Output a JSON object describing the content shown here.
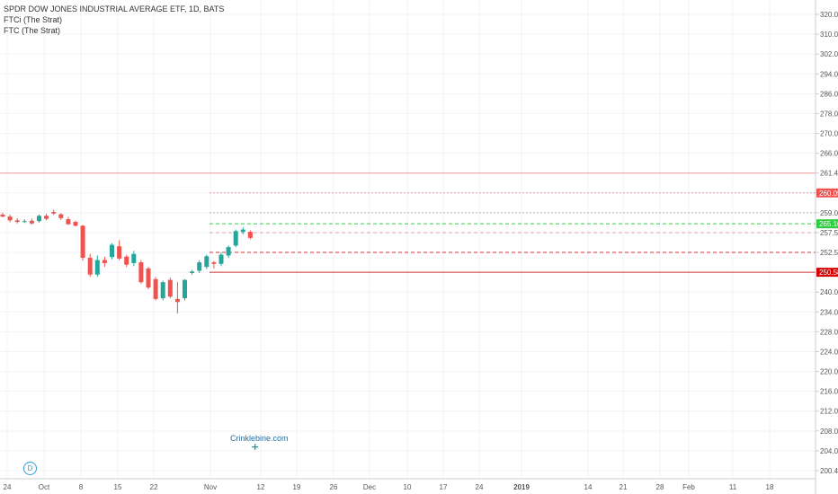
{
  "legend": {
    "title": "SPDR DOW JONES INDUSTRIAL AVERAGE ETF, 1D, BATS",
    "ind1": "FTCi (The Strat)",
    "ind2": "FTC (The Strat)"
  },
  "watermark": "Crinklebine.com",
  "marker": "D",
  "colors": {
    "up": "#26a69a",
    "down": "#ef5350",
    "grid": "#f0f3fa",
    "green_dash": "#2ecc40",
    "red_dash": "#d32f2f"
  },
  "chart_data": {
    "type": "candlestick",
    "symbol": "SPDR DOW JONES INDUSTRIAL AVERAGE ETF",
    "interval": "1D",
    "ylim": [
      198,
      323
    ],
    "y_ticks": [
      "320.00",
      "310.00",
      "302.00",
      "294.00",
      "286.00",
      "278.00",
      "270.00",
      "266.00",
      "261.45",
      "260.09",
      "259.04",
      "257.50",
      "252.50",
      "250.58",
      "240.00",
      "234.00",
      "228.00",
      "224.00",
      "220.00",
      "216.00",
      "212.00",
      "208.00",
      "204.00",
      "200.40"
    ],
    "x_ticks": [
      "24",
      "Oct",
      "8",
      "15",
      "22",
      "Nov",
      "12",
      "19",
      "26",
      "Dec",
      "10",
      "17",
      "24",
      "2019",
      "14",
      "21",
      "28",
      "Feb",
      "11",
      "18"
    ],
    "candles": [
      {
        "o": 267.5,
        "h": 268.0,
        "l": 266.8,
        "c": 267.0
      },
      {
        "o": 267.0,
        "h": 267.5,
        "l": 265.5,
        "c": 266.0
      },
      {
        "o": 266.0,
        "h": 266.6,
        "l": 265.2,
        "c": 265.6
      },
      {
        "o": 265.8,
        "h": 266.3,
        "l": 265.3,
        "c": 265.8
      },
      {
        "o": 265.9,
        "h": 266.5,
        "l": 264.9,
        "c": 265.2
      },
      {
        "o": 265.8,
        "h": 267.5,
        "l": 265.4,
        "c": 267.2
      },
      {
        "o": 267.2,
        "h": 267.8,
        "l": 266.0,
        "c": 266.4
      },
      {
        "o": 268.2,
        "h": 268.8,
        "l": 267.4,
        "c": 267.8
      },
      {
        "o": 267.6,
        "h": 267.9,
        "l": 266.1,
        "c": 266.6
      },
      {
        "o": 266.3,
        "h": 266.9,
        "l": 264.8,
        "c": 265.0
      },
      {
        "o": 265.6,
        "h": 265.9,
        "l": 264.4,
        "c": 264.6
      },
      {
        "o": 264.6,
        "h": 264.8,
        "l": 255.4,
        "c": 256.2
      },
      {
        "o": 256.2,
        "h": 257.2,
        "l": 251.2,
        "c": 251.8
      },
      {
        "o": 251.8,
        "h": 256.8,
        "l": 251.2,
        "c": 255.6
      },
      {
        "o": 255.6,
        "h": 256.5,
        "l": 253.8,
        "c": 254.8
      },
      {
        "o": 256.4,
        "h": 260.0,
        "l": 255.8,
        "c": 259.6
      },
      {
        "o": 259.2,
        "h": 260.8,
        "l": 255.6,
        "c": 256.0
      },
      {
        "o": 256.5,
        "h": 257.0,
        "l": 253.8,
        "c": 254.4
      },
      {
        "o": 254.8,
        "h": 258.0,
        "l": 254.0,
        "c": 257.2
      },
      {
        "o": 255.0,
        "h": 255.6,
        "l": 249.4,
        "c": 249.8
      },
      {
        "o": 253.4,
        "h": 253.8,
        "l": 248.0,
        "c": 248.4
      },
      {
        "o": 250.6,
        "h": 251.2,
        "l": 245.0,
        "c": 245.4
      },
      {
        "o": 245.6,
        "h": 250.2,
        "l": 245.0,
        "c": 249.8
      },
      {
        "o": 250.4,
        "h": 251.0,
        "l": 245.6,
        "c": 246.0
      },
      {
        "o": 245.4,
        "h": 249.8,
        "l": 241.6,
        "c": 244.6
      },
      {
        "o": 245.6,
        "h": 250.6,
        "l": 245.0,
        "c": 250.4
      },
      {
        "o": 252.2,
        "h": 253.0,
        "l": 251.8,
        "c": 252.6
      },
      {
        "o": 252.8,
        "h": 255.6,
        "l": 252.2,
        "c": 255.0
      },
      {
        "o": 253.8,
        "h": 257.0,
        "l": 253.2,
        "c": 256.6
      },
      {
        "o": 255.0,
        "h": 255.4,
        "l": 253.4,
        "c": 254.6
      },
      {
        "o": 254.6,
        "h": 257.6,
        "l": 254.0,
        "c": 257.0
      },
      {
        "o": 256.8,
        "h": 259.4,
        "l": 256.2,
        "c": 259.0
      },
      {
        "o": 259.4,
        "h": 263.6,
        "l": 259.0,
        "c": 263.2
      },
      {
        "o": 263.0,
        "h": 264.2,
        "l": 262.4,
        "c": 263.6
      },
      {
        "o": 263.0,
        "h": 263.4,
        "l": 261.0,
        "c": 261.4
      }
    ],
    "price_lines": [
      {
        "value": 265.1,
        "style": "dashed",
        "color": "#2ecc40",
        "label": "265.10",
        "badge_bg": "#2ecc40",
        "badge_fg": "#ffffff"
      },
      {
        "value": 261.45,
        "style": "solid",
        "color": "#ef9a9a",
        "label": "261.45",
        "badge_bg": "#ffffff",
        "badge_fg": "#333333"
      },
      {
        "value": 260.09,
        "style": "dotted",
        "color": "#ef9a9a",
        "label": "260.09",
        "badge_bg": "#ef5350",
        "badge_fg": "#ffffff"
      },
      {
        "value": 259.04,
        "style": "dotted",
        "color": "#bdbdbd",
        "label": "259.04",
        "badge_bg": "#ffffff",
        "badge_fg": "#333333"
      },
      {
        "value": 257.5,
        "style": "dashed",
        "color": "#e0a0a0",
        "label": "257.50",
        "badge_bg": "#ffffff",
        "badge_fg": "#333333"
      },
      {
        "value": 252.5,
        "style": "dashed",
        "color": "#d32f2f",
        "label": "252.50",
        "badge_bg": "#ffffff",
        "badge_fg": "#333333"
      },
      {
        "value": 250.58,
        "style": "solid",
        "color": "#d32f2f",
        "label": "250.58",
        "badge_bg": "#d50000",
        "badge_fg": "#ffffff"
      }
    ]
  }
}
